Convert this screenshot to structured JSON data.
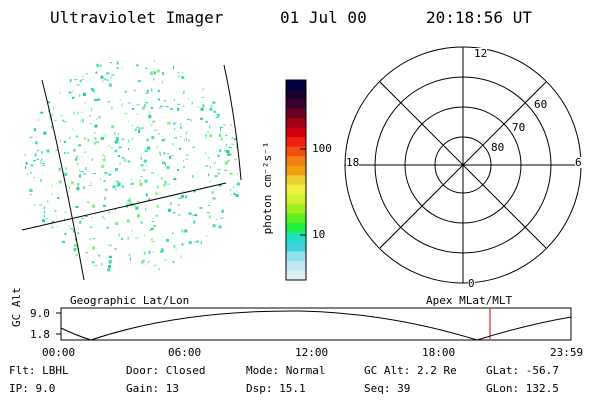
{
  "header": {
    "instrument": "Ultraviolet Imager",
    "date": "01 Jul 00",
    "time": "20:18:56 UT"
  },
  "colorbar": {
    "unit_label": "photon cm⁻²s⁻¹",
    "ticks": [
      "100",
      "10"
    ],
    "colors": [
      "#000040",
      "#1a0030",
      "#3a0030",
      "#6a0024",
      "#a00014",
      "#d00010",
      "#f02010",
      "#f05010",
      "#f08010",
      "#f0a010",
      "#f0d030",
      "#f0f040",
      "#d0f030",
      "#a0f020",
      "#60f020",
      "#20f040",
      "#20e0c0",
      "#40d0e0",
      "#90e0f0",
      "#c0e8f0",
      "#e0f0f0"
    ]
  },
  "left_view": {
    "label": "Geographic Lat/Lon",
    "dot_colors": [
      "#20d0a0",
      "#40e0b0",
      "#80f080"
    ]
  },
  "polar_plot": {
    "label": "Apex MLat/MLT",
    "mlt_labels": {
      "top": "12",
      "bottom": "0",
      "left": "18",
      "right": "6"
    },
    "lat_labels": [
      "60",
      "70",
      "80"
    ]
  },
  "altitude_plot": {
    "ylabel": "GC Alt",
    "y_ticks": [
      "9.0",
      "1.8"
    ],
    "x_ticks": [
      "00:00",
      "06:00",
      "12:00",
      "18:00",
      "23:59"
    ],
    "marker_color": "#d00000"
  },
  "status": {
    "flt": "Flt: LBHL",
    "ip": "IP: 9.0",
    "door": "Door: Closed",
    "gain": "Gain: 13",
    "mode": "Mode: Normal",
    "dsp": "Dsp: 15.1",
    "gcalt": "GC Alt: 2.2 Re",
    "seq": "Seq: 39",
    "glat": "GLat: -56.7",
    "glon": "GLon: 132.5"
  }
}
